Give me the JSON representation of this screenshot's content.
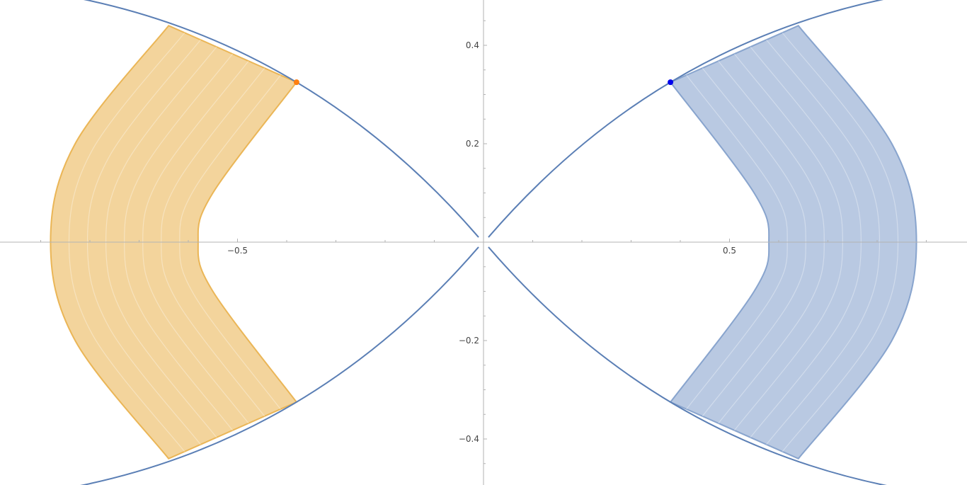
{
  "chart_data": {
    "type": "scatter",
    "title": "",
    "xlabel": "",
    "ylabel": "",
    "xlim": [
      -0.98,
      0.98
    ],
    "ylim": [
      -0.49,
      0.49
    ],
    "grid": false,
    "x_ticks": [
      {
        "value": -0.5,
        "label": "−0.5"
      },
      {
        "value": 0.5,
        "label": "0.5"
      }
    ],
    "y_ticks": [
      {
        "value": 0.4,
        "label": "0.4"
      },
      {
        "value": 0.2,
        "label": "0.2"
      },
      {
        "value": -0.2,
        "label": "−0.2"
      },
      {
        "value": -0.4,
        "label": "−0.4"
      }
    ],
    "colors": {
      "boundary": "#5b7fb5",
      "left_band": "#e9b04a",
      "right_band": "#7f9dca",
      "left_point": "#ff7f0e",
      "right_point": "#0000ee",
      "axis": "#b3b3b3"
    },
    "boundary_curves": [
      {
        "points": [
          [
            0.01,
            0.01
          ],
          [
            0.38,
            0.325
          ],
          [
            0.82,
            0.495
          ]
        ]
      },
      {
        "points": [
          [
            0.01,
            -0.01
          ],
          [
            0.38,
            -0.325
          ],
          [
            0.82,
            -0.495
          ]
        ]
      },
      {
        "points": [
          [
            -0.01,
            0.01
          ],
          [
            -0.38,
            0.325
          ],
          [
            -0.82,
            0.495
          ]
        ]
      },
      {
        "points": [
          [
            -0.01,
            -0.01
          ],
          [
            -0.38,
            -0.325
          ],
          [
            -0.82,
            -0.495
          ]
        ]
      }
    ],
    "bands": [
      {
        "side": "left",
        "inner_edge": [
          [
            -0.38,
            0.325
          ],
          [
            -0.55,
            0.1
          ],
          [
            -0.58,
            0.0
          ],
          [
            -0.55,
            -0.1
          ],
          [
            -0.38,
            -0.325
          ]
        ],
        "outer_edge": [
          [
            -0.64,
            0.44
          ],
          [
            -0.83,
            0.2
          ],
          [
            -0.88,
            0.0
          ],
          [
            -0.83,
            -0.2
          ],
          [
            -0.64,
            -0.44
          ]
        ]
      },
      {
        "side": "right",
        "inner_edge": [
          [
            0.38,
            0.325
          ],
          [
            0.55,
            0.1
          ],
          [
            0.58,
            0.0
          ],
          [
            0.55,
            -0.1
          ],
          [
            0.38,
            -0.325
          ]
        ],
        "outer_edge": [
          [
            0.64,
            0.44
          ],
          [
            0.83,
            0.2
          ],
          [
            0.88,
            0.0
          ],
          [
            0.83,
            -0.2
          ],
          [
            0.64,
            -0.44
          ]
        ]
      }
    ],
    "points": [
      {
        "name": "left-endpoint",
        "x": -0.38,
        "y": 0.325
      },
      {
        "name": "right-endpoint",
        "x": 0.38,
        "y": 0.325
      }
    ]
  }
}
